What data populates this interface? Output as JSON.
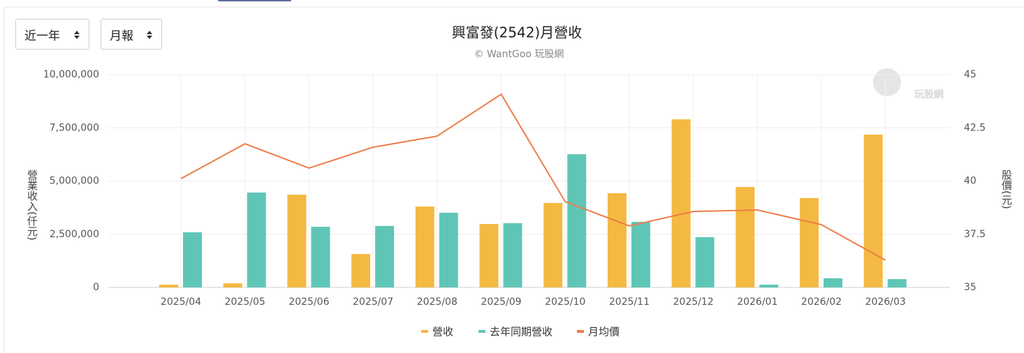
{
  "controls": {
    "period": "近一年",
    "frequency": "月報"
  },
  "chart_data": {
    "type": "bar",
    "title": "興富發(2542)月營收",
    "subtitle": "© WantGoo 玩股網",
    "watermark": "玩股網",
    "y_label": "營業收入(仟元)",
    "y2_label": "股價(元)",
    "categories": [
      "2025/04",
      "2025/05",
      "2025/06",
      "2025/07",
      "2025/08",
      "2025/09",
      "2025/10",
      "2025/11",
      "2025/12",
      "2026/01",
      "2026/02",
      "2026/03"
    ],
    "series": [
      {
        "name": "營收",
        "color": "#f4b942",
        "type": "bar",
        "values": [
          130000,
          190000,
          4360000,
          1570000,
          3800000,
          2980000,
          3970000,
          4430000,
          7900000,
          4720000,
          4200000,
          7180000
        ]
      },
      {
        "name": "去年同期營收",
        "color": "#5fc6b6",
        "type": "bar",
        "values": [
          2590000,
          4460000,
          2850000,
          2890000,
          3510000,
          3020000,
          6260000,
          3080000,
          2360000,
          130000,
          430000,
          390000
        ]
      },
      {
        "name": "月均價",
        "color": "#ed7d4a",
        "type": "line",
        "axis": "y2",
        "values": [
          40.11,
          41.75,
          40.61,
          41.59,
          42.11,
          44.08,
          39.03,
          37.89,
          38.57,
          38.64,
          37.95,
          36.28
        ]
      }
    ],
    "ylim": [
      0,
      10000000
    ],
    "yticks": [
      0,
      {
        "value": 2500000,
        "label": "2,500,000"
      },
      {
        "value": 5000000,
        "label": "5,000,000"
      },
      {
        "value": 7500000,
        "label": "7,500,000"
      },
      {
        "value": 10000000,
        "label": "10,000,000"
      }
    ],
    "y2lim": [
      35,
      45
    ],
    "y2ticks": [
      35,
      37.5,
      40,
      42.5,
      45
    ],
    "grid": true
  }
}
